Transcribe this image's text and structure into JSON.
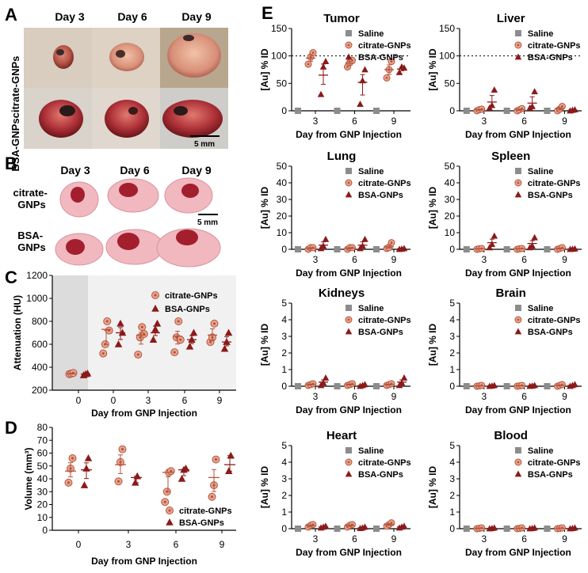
{
  "figure": {
    "panel_labels": [
      "A",
      "B",
      "C",
      "D",
      "E"
    ],
    "panelA": {
      "days": [
        "Day 3",
        "Day 6",
        "Day 9"
      ],
      "rows": [
        "citrate-GNPs",
        "BSA-GNPs"
      ],
      "scalebar": "5 mm"
    },
    "panelB": {
      "days": [
        "Day 3",
        "Day 6",
        "Day 9"
      ],
      "rows": [
        "citrate-\nGNPs",
        "BSA-\nGNPs"
      ],
      "row1a": "citrate-",
      "row1b": "GNPs",
      "row2a": "BSA-",
      "row2b": "GNPs",
      "scalebar": "5 mm"
    },
    "colors": {
      "saline": "#8c8c8c",
      "citrate_fill": "#e9a48e",
      "citrate_stroke": "#b4553e",
      "bsa": "#8b1a1a",
      "tumor_pale": "#f2b8c0",
      "tumor_dark": "#a31f2e"
    }
  },
  "chart_data": [
    {
      "id": "C",
      "type": "scatter",
      "title": "",
      "xlabel": "Day from GNP Injection",
      "ylabel": "Attenuation (HU)",
      "categories": [
        "0",
        "0",
        "3",
        "6",
        "9"
      ],
      "ylim": [
        200,
        1200
      ],
      "yticks": [
        200,
        400,
        600,
        800,
        1000,
        1200
      ],
      "legend": [
        "citrate-GNPs",
        "BSA-GNPs"
      ],
      "series": [
        {
          "name": "citrate-GNPs",
          "points": [
            [
              0,
              [
                340,
                345,
                350
              ]
            ],
            [
              1,
              [
                520,
                600,
                800,
                720
              ]
            ],
            [
              2,
              [
                510,
                660,
                750,
                690
              ]
            ],
            [
              3,
              [
                530,
                660,
                800,
                640
              ]
            ],
            [
              4,
              [
                620,
                660,
                780
              ]
            ]
          ],
          "means": [
            343,
            730,
            680,
            670,
            680
          ]
        },
        {
          "name": "BSA-GNPs",
          "points": [
            [
              0,
              [
                330,
                340,
                345
              ]
            ],
            [
              1,
              [
                600,
                780,
                700
              ]
            ],
            [
              2,
              [
                640,
                730,
                780
              ]
            ],
            [
              3,
              [
                580,
                640,
                700
              ]
            ],
            [
              4,
              [
                560,
                620,
                700
              ]
            ]
          ],
          "means": [
            340,
            700,
            700,
            640,
            620
          ]
        }
      ]
    },
    {
      "id": "D",
      "type": "scatter",
      "title": "",
      "xlabel": "Day from GNP Injection",
      "ylabel": "Volume (mm³)",
      "categories": [
        "0",
        "3",
        "6",
        "9"
      ],
      "ylim": [
        0,
        80
      ],
      "yticks": [
        0,
        10,
        20,
        30,
        40,
        50,
        60,
        70,
        80
      ],
      "legend": [
        "citrate-GNPs",
        "BSA-GNPs"
      ],
      "series": [
        {
          "name": "citrate-GNPs",
          "points": [
            [
              0,
              [
                37,
                48,
                56
              ]
            ],
            [
              1,
              [
                38,
                53,
                63
              ]
            ],
            [
              2,
              [
                22,
                30,
                45,
                46
              ]
            ],
            [
              3,
              [
                26,
                35,
                55
              ]
            ]
          ],
          "means": [
            46,
            51,
            45,
            41
          ]
        },
        {
          "name": "BSA-GNPs",
          "points": [
            [
              0,
              [
                35,
                48,
                56
              ]
            ],
            [
              1,
              [
                37,
                42
              ]
            ],
            [
              2,
              [
                40,
                47,
                48
              ]
            ],
            [
              3,
              [
                46,
                58
              ]
            ]
          ],
          "means": [
            47,
            41,
            47,
            51
          ]
        }
      ]
    },
    {
      "id": "E",
      "type": "scatter",
      "xlabel": "Day from GNP Injection",
      "ylabel": "[Au] % ID",
      "categories": [
        "3",
        "6",
        "9"
      ],
      "legend": [
        "Saline",
        "citrate-GNPs",
        "BSA-GNPs"
      ],
      "panels": [
        {
          "title": "Tumor",
          "ylim": [
            0,
            150
          ],
          "yticks": [
            0,
            50,
            100,
            150
          ],
          "refline": 100,
          "saline": [
            0,
            0,
            0
          ],
          "citrate": [
            [
              85,
              98,
              106
            ],
            [
              80,
              88,
              92
            ],
            [
              60,
              75,
              90
            ]
          ],
          "citrate_mean": [
            96,
            87,
            75
          ],
          "bsa": [
            [
              30,
              80,
              90
            ],
            [
              12,
              55,
              75
            ],
            [
              70,
              80,
              78
            ]
          ],
          "bsa_mean": [
            65,
            52,
            76
          ]
        },
        {
          "title": "Liver",
          "ylim": [
            0,
            150
          ],
          "yticks": [
            0,
            50,
            100,
            150
          ],
          "refline": 100,
          "saline": [
            0,
            0,
            0
          ],
          "citrate": [
            [
              0,
              2,
              3
            ],
            [
              0,
              2,
              4
            ],
            [
              0,
              3,
              8
            ]
          ],
          "citrate_mean": [
            2,
            2,
            4
          ],
          "bsa": [
            [
              5,
              10,
              38
            ],
            [
              5,
              8,
              35
            ],
            [
              0,
              1,
              2
            ]
          ],
          "bsa_mean": [
            16,
            14,
            1
          ]
        },
        {
          "title": "Lung",
          "ylim": [
            0,
            50
          ],
          "yticks": [
            0,
            10,
            20,
            30,
            40,
            50
          ],
          "saline": [
            0,
            0,
            0
          ],
          "citrate": [
            [
              0,
              1,
              1
            ],
            [
              0,
              1,
              1
            ],
            [
              0.5,
              1,
              4
            ]
          ],
          "citrate_mean": [
            0.7,
            0.7,
            1.5
          ],
          "bsa": [
            [
              0.5,
              2,
              6
            ],
            [
              0.5,
              2,
              6
            ],
            [
              0,
              0.2,
              0.5
            ]
          ],
          "bsa_mean": [
            2.5,
            2.5,
            0.3
          ]
        },
        {
          "title": "Spleen",
          "ylim": [
            0,
            50
          ],
          "yticks": [
            0,
            10,
            20,
            30,
            40,
            50
          ],
          "saline": [
            0,
            0,
            0
          ],
          "citrate": [
            [
              0,
              0.3,
              0.5
            ],
            [
              0,
              0.3,
              0.5
            ],
            [
              0,
              0.5,
              1
            ]
          ],
          "citrate_mean": [
            0.3,
            0.3,
            0.5
          ],
          "bsa": [
            [
              1,
              3,
              8
            ],
            [
              1,
              2,
              7
            ],
            [
              0,
              0.1,
              0.3
            ]
          ],
          "bsa_mean": [
            4,
            3.5,
            0.2
          ]
        },
        {
          "title": "Kidneys",
          "ylim": [
            0,
            5
          ],
          "yticks": [
            0,
            1,
            2,
            3,
            4,
            5
          ],
          "saline": [
            0,
            0,
            0
          ],
          "citrate": [
            [
              0.05,
              0.1,
              0.15
            ],
            [
              0.05,
              0.1,
              0.15
            ],
            [
              0.05,
              0.1,
              0.15
            ]
          ],
          "citrate_mean": [
            0.1,
            0.1,
            0.1
          ],
          "bsa": [
            [
              0.05,
              0.2,
              0.5
            ],
            [
              0,
              0.05,
              0.1
            ],
            [
              0.05,
              0.2,
              0.5
            ]
          ],
          "bsa_mean": [
            0.25,
            0.05,
            0.25
          ]
        },
        {
          "title": "Brain",
          "ylim": [
            0,
            5
          ],
          "yticks": [
            0,
            1,
            2,
            3,
            4,
            5
          ],
          "saline": [
            0,
            0,
            0
          ],
          "citrate": [
            [
              0,
              0.02,
              0.05
            ],
            [
              0,
              0.02,
              0.05
            ],
            [
              0,
              0.05,
              0.1
            ]
          ],
          "citrate_mean": [
            0.02,
            0.02,
            0.05
          ],
          "bsa": [
            [
              0,
              0.02,
              0.05
            ],
            [
              0,
              0.02,
              0.05
            ],
            [
              0,
              0.05,
              0.1
            ]
          ],
          "bsa_mean": [
            0.02,
            0.02,
            0.05
          ]
        },
        {
          "title": "Heart",
          "ylim": [
            0,
            5
          ],
          "yticks": [
            0,
            1,
            2,
            3,
            4,
            5
          ],
          "saline": [
            0,
            0,
            0
          ],
          "citrate": [
            [
              0.1,
              0.2,
              0.25
            ],
            [
              0.1,
              0.2,
              0.25
            ],
            [
              0.15,
              0.25,
              0.35
            ]
          ],
          "citrate_mean": [
            0.18,
            0.18,
            0.25
          ],
          "bsa": [
            [
              0.05,
              0.1,
              0.15
            ],
            [
              0.02,
              0.05,
              0.1
            ],
            [
              0.05,
              0.1,
              0.15
            ]
          ],
          "bsa_mean": [
            0.1,
            0.05,
            0.1
          ]
        },
        {
          "title": "Blood",
          "ylim": [
            0,
            5
          ],
          "yticks": [
            0,
            1,
            2,
            3,
            4,
            5
          ],
          "saline": [
            0,
            0,
            0
          ],
          "citrate": [
            [
              0,
              0.02,
              0.05
            ],
            [
              0,
              0.02,
              0.05
            ],
            [
              0,
              0.02,
              0.05
            ]
          ],
          "citrate_mean": [
            0.02,
            0.02,
            0.02
          ],
          "bsa": [
            [
              0,
              0.02,
              0.05
            ],
            [
              0,
              0.02,
              0.05
            ],
            [
              0,
              0.02,
              0.05
            ]
          ],
          "bsa_mean": [
            0.02,
            0.02,
            0.02
          ]
        }
      ]
    }
  ]
}
